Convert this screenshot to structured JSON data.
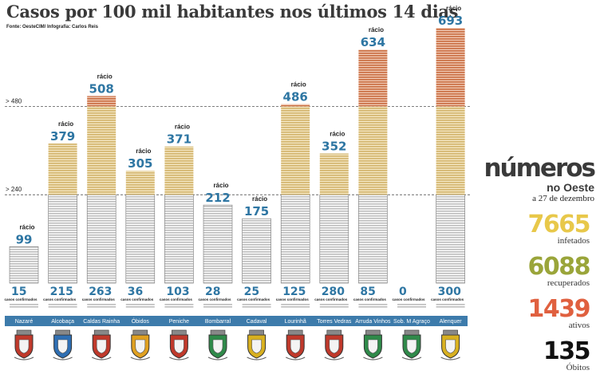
{
  "title": "Casos por 100 mil habitantes nos últimos 14 dias",
  "source": "Fonte: OesteCIM/ Infografia: Carlos Reis",
  "summary": {
    "heading": "números",
    "region": "no Oeste",
    "date": "a 27 de dezembro",
    "stats": [
      {
        "value": "7665",
        "label": "infetados",
        "color": "#e8c84a"
      },
      {
        "value": "6088",
        "label": "recuperados",
        "color": "#9aa53a"
      },
      {
        "value": "1439",
        "label": "ativos",
        "color": "#e0603f"
      },
      {
        "value": "135",
        "label": "Óbitos",
        "color": "#111111"
      }
    ]
  },
  "colors": {
    "gray": "#c9c9c9",
    "yellow": "#d9bd7a",
    "orange": "#cf7a52",
    "ratio": "#2e76a3",
    "strip": "#3d7bab"
  },
  "chart_data": {
    "type": "bar",
    "ylim": [
      0,
      693
    ],
    "thresholds": [
      {
        "value": 240,
        "label": "> 240"
      },
      {
        "value": 480,
        "label": "> 480"
      }
    ],
    "ratio_label": "rácio",
    "confirmed_label": "casos confirmados",
    "categories": [
      "Nazaré",
      "Alcobaça",
      "Caldas Rainha",
      "Óbidos",
      "Peniche",
      "Bombarral",
      "Cadaval",
      "Lourinhã",
      "Torres Vedras",
      "Arruda Vinhos",
      "Sob. M Agraço",
      "Alenquer"
    ],
    "ratio": [
      99,
      379,
      508,
      305,
      371,
      212,
      175,
      486,
      352,
      634,
      0,
      693
    ],
    "confirmed": [
      15,
      215,
      263,
      36,
      103,
      28,
      25,
      125,
      280,
      85,
      0,
      300
    ],
    "crest_icons": [
      "nazare-crest-icon",
      "alcobaca-crest-icon",
      "caldas-rainha-crest-icon",
      "obidos-crest-icon",
      "peniche-crest-icon",
      "bombarral-crest-icon",
      "cadaval-crest-icon",
      "lourinha-crest-icon",
      "torres-vedras-crest-icon",
      "arruda-vinhos-crest-icon",
      "sobral-crest-icon",
      "alenquer-crest-icon"
    ]
  }
}
